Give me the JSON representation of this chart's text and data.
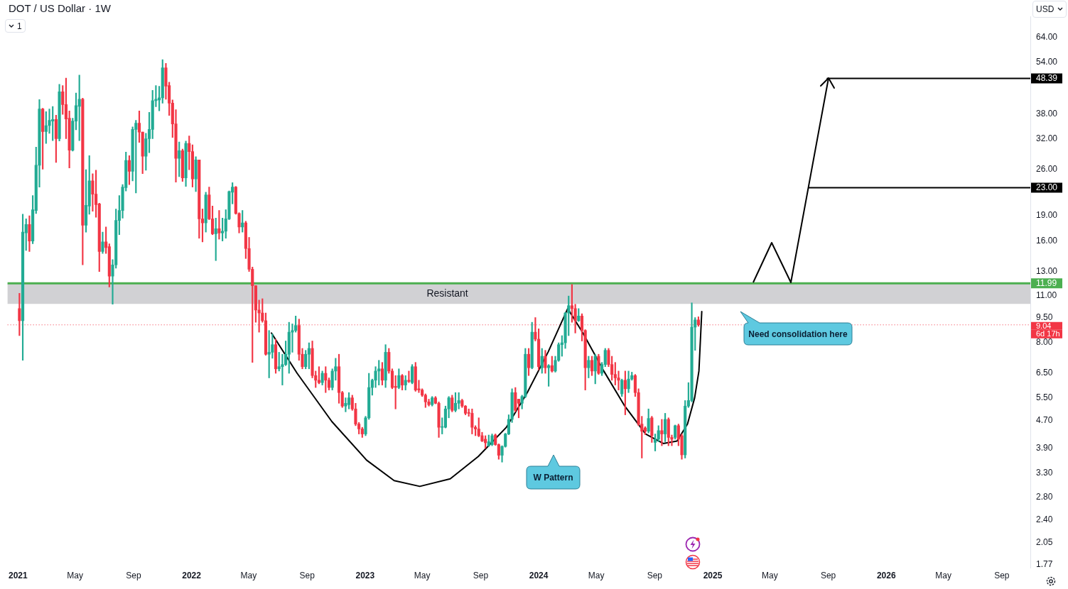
{
  "chart_data": {
    "type": "candlestick",
    "title": "DOT / US Dollar · 1W",
    "x": [
      "2021-01-04",
      "2021-01-11",
      "2021-01-18",
      "2021-01-25",
      "2021-02-01",
      "2021-02-08",
      "2021-02-15",
      "2021-02-22",
      "2021-03-01",
      "2021-03-08",
      "2021-03-15",
      "2021-03-22",
      "2021-03-29",
      "2021-04-05",
      "2021-04-12",
      "2021-04-19",
      "2021-04-26",
      "2021-05-03",
      "2021-05-10",
      "2021-05-17",
      "2021-05-24",
      "2021-05-31",
      "2021-06-07",
      "2021-06-14",
      "2021-06-21",
      "2021-06-28",
      "2021-07-05",
      "2021-07-12",
      "2021-07-19",
      "2021-07-26",
      "2021-08-02",
      "2021-08-09",
      "2021-08-16",
      "2021-08-23",
      "2021-08-30",
      "2021-09-06",
      "2021-09-13",
      "2021-09-20",
      "2021-09-27",
      "2021-10-04",
      "2021-10-11",
      "2021-10-18",
      "2021-10-25",
      "2021-11-01",
      "2021-11-08",
      "2021-11-15",
      "2021-11-22",
      "2021-11-29",
      "2021-12-06",
      "2021-12-13",
      "2021-12-20",
      "2021-12-27",
      "2022-01-03",
      "2022-01-10",
      "2022-01-17",
      "2022-01-24",
      "2022-01-31",
      "2022-02-07",
      "2022-02-14",
      "2022-02-21",
      "2022-02-28",
      "2022-03-07",
      "2022-03-14",
      "2022-03-21",
      "2022-03-28",
      "2022-04-04",
      "2022-04-11",
      "2022-04-18",
      "2022-04-25",
      "2022-05-02",
      "2022-05-09",
      "2022-05-16",
      "2022-05-23",
      "2022-05-30",
      "2022-06-06",
      "2022-06-13",
      "2022-06-20",
      "2022-06-27",
      "2022-07-04",
      "2022-07-11",
      "2022-07-18",
      "2022-07-25",
      "2022-08-01",
      "2022-08-08",
      "2022-08-15",
      "2022-08-22",
      "2022-08-29",
      "2022-09-05",
      "2022-09-12",
      "2022-09-19",
      "2022-09-26",
      "2022-10-03",
      "2022-10-10",
      "2022-10-17",
      "2022-10-24",
      "2022-10-31",
      "2022-11-07",
      "2022-11-14",
      "2022-11-21",
      "2022-11-28",
      "2022-12-05",
      "2022-12-12",
      "2022-12-19",
      "2022-12-26",
      "2023-01-02",
      "2023-01-09",
      "2023-01-16",
      "2023-01-23",
      "2023-01-30",
      "2023-02-06",
      "2023-02-13",
      "2023-02-20",
      "2023-02-27",
      "2023-03-06",
      "2023-03-13",
      "2023-03-20",
      "2023-03-27",
      "2023-04-03",
      "2023-04-10",
      "2023-04-17",
      "2023-04-24",
      "2023-05-01",
      "2023-05-08",
      "2023-05-15",
      "2023-05-22",
      "2023-05-29",
      "2023-06-05",
      "2023-06-12",
      "2023-06-19",
      "2023-06-26",
      "2023-07-03",
      "2023-07-10",
      "2023-07-17",
      "2023-07-24",
      "2023-07-31",
      "2023-08-07",
      "2023-08-14",
      "2023-08-21",
      "2023-08-28",
      "2023-09-04",
      "2023-09-11",
      "2023-09-18",
      "2023-09-25",
      "2023-10-02",
      "2023-10-09",
      "2023-10-16",
      "2023-10-23",
      "2023-10-30",
      "2023-11-06",
      "2023-11-13",
      "2023-11-20",
      "2023-11-27",
      "2023-12-04",
      "2023-12-11",
      "2023-12-18",
      "2023-12-25",
      "2024-01-01",
      "2024-01-08",
      "2024-01-15",
      "2024-01-22",
      "2024-01-29",
      "2024-02-05",
      "2024-02-12",
      "2024-02-19",
      "2024-02-26",
      "2024-03-04",
      "2024-03-11",
      "2024-03-18",
      "2024-03-25",
      "2024-04-01",
      "2024-04-08",
      "2024-04-15",
      "2024-04-22",
      "2024-04-29",
      "2024-05-06",
      "2024-05-13",
      "2024-05-20",
      "2024-05-27",
      "2024-06-03",
      "2024-06-10",
      "2024-06-17",
      "2024-06-24",
      "2024-07-01",
      "2024-07-08",
      "2024-07-15",
      "2024-07-22",
      "2024-07-29",
      "2024-08-05",
      "2024-08-12",
      "2024-08-19",
      "2024-08-26",
      "2024-09-02",
      "2024-09-09",
      "2024-09-16",
      "2024-09-23",
      "2024-09-30",
      "2024-10-07",
      "2024-10-14",
      "2024-10-21",
      "2024-10-28",
      "2024-11-04",
      "2024-11-11",
      "2024-11-18",
      "2024-11-25",
      "2024-12-02"
    ],
    "ohlc": [
      [
        10.1,
        11.2,
        8.4,
        9.3
      ],
      [
        9.3,
        19.2,
        7.1,
        17.0
      ],
      [
        16.9,
        18.6,
        15.0,
        17.9
      ],
      [
        17.9,
        19.0,
        14.9,
        16.0
      ],
      [
        16.0,
        21.8,
        15.7,
        19.8
      ],
      [
        19.7,
        30.3,
        19.3,
        26.8
      ],
      [
        26.8,
        41.9,
        23.1,
        39.3
      ],
      [
        39.3,
        39.5,
        26.1,
        33.7
      ],
      [
        33.7,
        38.6,
        31.1,
        35.1
      ],
      [
        35.1,
        39.3,
        33.3,
        36.4
      ],
      [
        36.2,
        40.0,
        31.7,
        36.6
      ],
      [
        36.6,
        37.7,
        27.3,
        32.1
      ],
      [
        32.1,
        46.5,
        31.6,
        44.2
      ],
      [
        44.2,
        46.1,
        37.9,
        40.5
      ],
      [
        40.5,
        48.5,
        32.1,
        36.7
      ],
      [
        36.9,
        38.8,
        26.3,
        29.7
      ],
      [
        29.7,
        36.9,
        29.5,
        36.2
      ],
      [
        36.2,
        43.8,
        34.1,
        40.2
      ],
      [
        40.0,
        49.5,
        31.7,
        42.0
      ],
      [
        42.0,
        42.3,
        13.6,
        17.8
      ],
      [
        17.8,
        26.0,
        17.0,
        20.4
      ],
      [
        20.3,
        28.6,
        19.2,
        24.1
      ],
      [
        24.1,
        25.3,
        19.6,
        22.0
      ],
      [
        22.0,
        25.9,
        18.8,
        20.5
      ],
      [
        20.6,
        20.7,
        13.0,
        14.9
      ],
      [
        14.9,
        17.0,
        14.7,
        15.9
      ],
      [
        15.9,
        17.6,
        14.7,
        15.3
      ],
      [
        15.4,
        15.7,
        11.7,
        12.6
      ],
      [
        12.6,
        14.1,
        10.4,
        13.6
      ],
      [
        13.6,
        19.9,
        13.3,
        18.4
      ],
      [
        18.4,
        21.8,
        16.7,
        19.7
      ],
      [
        19.7,
        23.5,
        18.7,
        23.1
      ],
      [
        23.0,
        29.3,
        22.5,
        27.7
      ],
      [
        27.7,
        28.6,
        23.5,
        25.7
      ],
      [
        25.7,
        34.8,
        24.1,
        34.2
      ],
      [
        34.2,
        36.4,
        22.2,
        35.7
      ],
      [
        35.7,
        38.8,
        31.3,
        33.6
      ],
      [
        33.6,
        33.6,
        25.3,
        28.5
      ],
      [
        28.5,
        33.3,
        25.9,
        32.1
      ],
      [
        32.1,
        38.4,
        29.2,
        34.2
      ],
      [
        34.2,
        44.6,
        32.1,
        41.6
      ],
      [
        41.6,
        46.1,
        39.9,
        42.0
      ],
      [
        41.8,
        45.9,
        38.8,
        42.4
      ],
      [
        42.4,
        55.0,
        40.9,
        52.0
      ],
      [
        52.0,
        53.6,
        42.0,
        45.9
      ],
      [
        46.1,
        47.2,
        37.6,
        40.9
      ],
      [
        40.9,
        41.8,
        32.4,
        35.5
      ],
      [
        35.5,
        39.1,
        23.9,
        28.1
      ],
      [
        28.1,
        31.4,
        24.8,
        29.6
      ],
      [
        29.6,
        29.9,
        24.0,
        24.6
      ],
      [
        24.6,
        31.6,
        23.2,
        31.1
      ],
      [
        31.1,
        32.7,
        26.0,
        29.4
      ],
      [
        29.4,
        30.8,
        23.1,
        24.4
      ],
      [
        24.4,
        28.4,
        22.4,
        27.8
      ],
      [
        27.8,
        27.8,
        16.3,
        18.6
      ],
      [
        18.6,
        19.9,
        15.9,
        18.1
      ],
      [
        18.1,
        22.3,
        17.0,
        21.9
      ],
      [
        21.9,
        23.1,
        18.5,
        18.6
      ],
      [
        18.6,
        20.3,
        16.7,
        16.8
      ],
      [
        16.8,
        18.7,
        14.0,
        17.4
      ],
      [
        17.4,
        19.7,
        16.2,
        16.9
      ],
      [
        16.9,
        18.7,
        16.0,
        17.1
      ],
      [
        17.1,
        19.8,
        16.3,
        18.6
      ],
      [
        18.6,
        22.5,
        18.5,
        22.4
      ],
      [
        22.3,
        23.8,
        20.6,
        23.1
      ],
      [
        23.1,
        23.2,
        19.2,
        19.3
      ],
      [
        19.3,
        19.4,
        16.9,
        17.6
      ],
      [
        17.6,
        19.7,
        17.0,
        18.1
      ],
      [
        18.1,
        18.3,
        14.2,
        15.2
      ],
      [
        15.2,
        16.4,
        13.0,
        13.2
      ],
      [
        13.2,
        13.4,
        7.0,
        11.8
      ],
      [
        11.8,
        11.8,
        9.2,
        10.0
      ],
      [
        10.0,
        10.7,
        8.6,
        9.8
      ],
      [
        9.8,
        10.8,
        9.2,
        9.3
      ],
      [
        9.3,
        9.8,
        7.35,
        7.4
      ],
      [
        7.4,
        8.7,
        6.3,
        7.5
      ],
      [
        7.5,
        8.5,
        7.2,
        7.9
      ],
      [
        7.9,
        8.2,
        6.5,
        6.7
      ],
      [
        6.7,
        7.5,
        6.6,
        6.8
      ],
      [
        6.8,
        7.4,
        6.0,
        6.9
      ],
      [
        6.9,
        8.1,
        6.85,
        7.4
      ],
      [
        7.4,
        9.2,
        6.5,
        8.6
      ],
      [
        8.6,
        9.1,
        7.5,
        8.7
      ],
      [
        8.7,
        9.6,
        8.6,
        9.0
      ],
      [
        9.0,
        9.4,
        7.1,
        7.4
      ],
      [
        7.4,
        7.7,
        6.7,
        6.8
      ],
      [
        6.8,
        7.6,
        6.7,
        7.4
      ],
      [
        7.4,
        8.0,
        6.7,
        7.7
      ],
      [
        7.7,
        8.1,
        6.3,
        6.4
      ],
      [
        6.4,
        6.6,
        5.9,
        6.2
      ],
      [
        6.2,
        6.8,
        6.05,
        6.1
      ],
      [
        6.1,
        6.6,
        6.0,
        6.5
      ],
      [
        6.5,
        6.8,
        5.7,
        6.2
      ],
      [
        6.2,
        6.3,
        5.8,
        5.9
      ],
      [
        5.9,
        6.7,
        5.8,
        6.6
      ],
      [
        6.6,
        7.2,
        6.2,
        6.8
      ],
      [
        6.8,
        7.4,
        5.3,
        5.7
      ],
      [
        5.7,
        5.75,
        5.15,
        5.2
      ],
      [
        5.2,
        5.5,
        5.0,
        5.3
      ],
      [
        5.25,
        5.7,
        5.1,
        5.5
      ],
      [
        5.5,
        5.6,
        5.05,
        5.1
      ],
      [
        5.1,
        5.3,
        4.55,
        4.6
      ],
      [
        4.6,
        4.65,
        4.3,
        4.45
      ],
      [
        4.45,
        4.5,
        4.2,
        4.3
      ],
      [
        4.3,
        4.85,
        4.25,
        4.8
      ],
      [
        4.8,
        6.5,
        4.75,
        5.9
      ],
      [
        5.9,
        6.25,
        5.6,
        6.2
      ],
      [
        6.2,
        6.8,
        5.9,
        6.6
      ],
      [
        6.6,
        7.1,
        6.0,
        6.7
      ],
      [
        6.7,
        7.0,
        6.0,
        6.2
      ],
      [
        6.2,
        7.9,
        5.9,
        7.5
      ],
      [
        7.5,
        7.7,
        6.5,
        6.6
      ],
      [
        6.6,
        6.7,
        5.85,
        5.9
      ],
      [
        5.95,
        6.4,
        5.1,
        5.9
      ],
      [
        5.9,
        6.7,
        5.85,
        6.4
      ],
      [
        6.4,
        6.45,
        5.8,
        6.0
      ],
      [
        6.0,
        6.4,
        5.8,
        6.2
      ],
      [
        6.2,
        6.6,
        6.1,
        6.15
      ],
      [
        6.1,
        6.9,
        6.05,
        6.8
      ],
      [
        6.8,
        7.0,
        5.75,
        5.8
      ],
      [
        5.85,
        6.2,
        5.7,
        5.8
      ],
      [
        5.8,
        5.85,
        5.55,
        5.6
      ],
      [
        5.6,
        5.65,
        5.15,
        5.35
      ],
      [
        5.35,
        5.45,
        5.2,
        5.25
      ],
      [
        5.25,
        5.55,
        5.2,
        5.5
      ],
      [
        5.5,
        5.55,
        5.28,
        5.3
      ],
      [
        5.3,
        5.35,
        4.2,
        4.5
      ],
      [
        4.5,
        4.8,
        4.3,
        4.52
      ],
      [
        4.5,
        5.2,
        4.48,
        5.1
      ],
      [
        5.1,
        5.55,
        4.8,
        5.5
      ],
      [
        5.5,
        5.6,
        5.0,
        5.05
      ],
      [
        5.05,
        5.7,
        5.0,
        5.3
      ],
      [
        5.3,
        5.7,
        5.1,
        5.4
      ],
      [
        5.4,
        5.45,
        5.15,
        5.2
      ],
      [
        5.2,
        5.22,
        4.9,
        4.95
      ],
      [
        4.97,
        5.1,
        4.85,
        4.95
      ],
      [
        4.95,
        5.1,
        4.3,
        4.5
      ],
      [
        4.5,
        4.55,
        4.25,
        4.45
      ],
      [
        4.45,
        4.8,
        4.22,
        4.25
      ],
      [
        4.25,
        4.35,
        4.08,
        4.1
      ],
      [
        4.15,
        4.25,
        3.9,
        4.05
      ],
      [
        3.97,
        4.27,
        3.95,
        4.08
      ],
      [
        4.0,
        4.3,
        3.97,
        4.25
      ],
      [
        4.27,
        4.3,
        3.98,
        4.0
      ],
      [
        4.0,
        4.02,
        3.62,
        3.72
      ],
      [
        3.72,
        3.97,
        3.55,
        3.95
      ],
      [
        3.95,
        4.32,
        3.93,
        4.3
      ],
      [
        4.3,
        4.9,
        4.28,
        4.75
      ],
      [
        4.75,
        5.85,
        4.65,
        5.7
      ],
      [
        5.7,
        5.9,
        5.0,
        5.05
      ],
      [
        5.45,
        5.45,
        4.8,
        5.3
      ],
      [
        5.3,
        5.6,
        5.1,
        5.55
      ],
      [
        5.55,
        7.7,
        5.5,
        7.4
      ],
      [
        7.4,
        7.7,
        6.4,
        6.75
      ],
      [
        6.75,
        9.2,
        6.7,
        8.6
      ],
      [
        8.6,
        9.5,
        8.1,
        8.2
      ],
      [
        8.2,
        8.8,
        6.65,
        6.8
      ],
      [
        6.75,
        7.7,
        6.5,
        7.3
      ],
      [
        7.3,
        7.6,
        6.5,
        6.75
      ],
      [
        6.75,
        6.9,
        5.95,
        6.85
      ],
      [
        6.85,
        7.3,
        6.55,
        6.6
      ],
      [
        6.6,
        7.3,
        6.55,
        7.1
      ],
      [
        7.1,
        8.0,
        7.05,
        7.9
      ],
      [
        7.9,
        8.4,
        7.3,
        8.0
      ],
      [
        8.0,
        9.85,
        7.7,
        9.8
      ],
      [
        9.8,
        11.0,
        8.4,
        10.3
      ],
      [
        10.3,
        11.9,
        9.2,
        10.1
      ],
      [
        10.1,
        10.4,
        8.55,
        9.3
      ],
      [
        9.3,
        10.1,
        9.25,
        9.6
      ],
      [
        9.6,
        9.75,
        8.1,
        8.7
      ],
      [
        8.7,
        8.75,
        5.8,
        6.75
      ],
      [
        6.75,
        7.3,
        6.3,
        7.1
      ],
      [
        7.1,
        7.3,
        6.4,
        6.6
      ],
      [
        6.6,
        7.4,
        6.05,
        7.3
      ],
      [
        7.3,
        7.4,
        6.45,
        6.5
      ],
      [
        6.5,
        7.0,
        6.4,
        6.9
      ],
      [
        6.9,
        7.7,
        6.8,
        7.6
      ],
      [
        7.6,
        7.7,
        6.8,
        6.9
      ],
      [
        6.9,
        7.3,
        6.2,
        6.45
      ],
      [
        6.45,
        7.0,
        6.0,
        6.3
      ],
      [
        6.3,
        6.6,
        5.8,
        6.2
      ],
      [
        5.65,
        6.25,
        5.55,
        6.2
      ],
      [
        6.2,
        6.6,
        4.9,
        5.85
      ],
      [
        5.85,
        6.6,
        5.7,
        6.25
      ],
      [
        6.25,
        6.55,
        6.2,
        6.4
      ],
      [
        6.4,
        6.45,
        5.55,
        5.7
      ],
      [
        5.7,
        5.85,
        4.55,
        4.6
      ],
      [
        4.6,
        4.85,
        3.65,
        4.38
      ],
      [
        4.48,
        4.52,
        4.28,
        4.38
      ],
      [
        4.38,
        5.1,
        4.33,
        4.78
      ],
      [
        4.8,
        4.85,
        4.06,
        4.25
      ],
      [
        4.06,
        4.3,
        3.83,
        4.15
      ],
      [
        4.15,
        4.55,
        4.08,
        4.4
      ],
      [
        4.4,
        4.75,
        3.97,
        4.3
      ],
      [
        4.3,
        4.95,
        4.08,
        4.75
      ],
      [
        4.75,
        4.8,
        3.97,
        4.2
      ],
      [
        4.2,
        4.27,
        3.97,
        4.15
      ],
      [
        4.2,
        4.57,
        4.15,
        4.55
      ],
      [
        4.55,
        4.6,
        3.97,
        4.15
      ],
      [
        4.25,
        4.3,
        3.62,
        3.73
      ],
      [
        3.73,
        5.4,
        3.65,
        5.2
      ],
      [
        5.2,
        6.1,
        5.15,
        5.4
      ],
      [
        5.4,
        10.5,
        5.35,
        8.9
      ],
      [
        8.9,
        9.5,
        7.6,
        9.35
      ],
      [
        9.35,
        9.55,
        8.95,
        9.04
      ]
    ],
    "colors": [
      "#f23645",
      "#22ab94",
      "#22ab94",
      "#f23645",
      "#22ab94",
      "#22ab94",
      "#22ab94",
      "#f23645",
      "#22ab94",
      "#22ab94",
      "#22ab94",
      "#f23645",
      "#22ab94",
      "#f23645",
      "#f23645",
      "#f23645",
      "#22ab94",
      "#22ab94",
      "#22ab94",
      "#f23645",
      "#22ab94",
      "#22ab94",
      "#f23645",
      "#f23645",
      "#f23645",
      "#22ab94",
      "#f23645",
      "#f23645",
      "#22ab94",
      "#22ab94",
      "#22ab94",
      "#22ab94",
      "#22ab94",
      "#f23645",
      "#22ab94",
      "#22ab94",
      "#f23645",
      "#f23645",
      "#22ab94",
      "#22ab94",
      "#22ab94",
      "#22ab94",
      "#22ab94",
      "#22ab94",
      "#f23645",
      "#f23645",
      "#f23645",
      "#f23645",
      "#22ab94",
      "#f23645",
      "#22ab94",
      "#f23645",
      "#f23645",
      "#22ab94",
      "#f23645",
      "#f23645",
      "#22ab94",
      "#f23645",
      "#f23645",
      "#22ab94",
      "#f23645",
      "#22ab94",
      "#22ab94",
      "#22ab94",
      "#22ab94",
      "#f23645",
      "#f23645",
      "#22ab94",
      "#f23645",
      "#f23645",
      "#f23645",
      "#f23645",
      "#f23645",
      "#f23645",
      "#f23645",
      "#22ab94",
      "#22ab94",
      "#f23645",
      "#22ab94",
      "#22ab94",
      "#22ab94",
      "#22ab94",
      "#22ab94",
      "#22ab94",
      "#f23645",
      "#f23645",
      "#22ab94",
      "#22ab94",
      "#f23645",
      "#f23645",
      "#f23645",
      "#22ab94",
      "#f23645",
      "#f23645",
      "#22ab94",
      "#22ab94",
      "#f23645",
      "#f23645",
      "#22ab94",
      "#22ab94",
      "#f23645",
      "#f23645",
      "#f23645",
      "#f23645",
      "#22ab94",
      "#22ab94",
      "#22ab94",
      "#22ab94",
      "#22ab94",
      "#f23645",
      "#22ab94",
      "#f23645",
      "#f23645",
      "#f23645",
      "#22ab94",
      "#f23645",
      "#22ab94",
      "#f23645",
      "#22ab94",
      "#f23645",
      "#f23645",
      "#f23645",
      "#f23645",
      "#f23645",
      "#22ab94",
      "#f23645",
      "#f23645",
      "#22ab94",
      "#22ab94",
      "#22ab94",
      "#f23645",
      "#22ab94",
      "#22ab94",
      "#f23645",
      "#f23645",
      "#f23645",
      "#f23645",
      "#f23645",
      "#f23645",
      "#f23645",
      "#f23645",
      "#22ab94",
      "#22ab94",
      "#f23645",
      "#f23645",
      "#22ab94",
      "#22ab94",
      "#22ab94",
      "#22ab94",
      "#f23645",
      "#f23645",
      "#22ab94",
      "#22ab94",
      "#f23645",
      "#22ab94",
      "#f23645",
      "#f23645",
      "#22ab94",
      "#f23645",
      "#22ab94",
      "#f23645",
      "#22ab94",
      "#22ab94",
      "#22ab94",
      "#22ab94",
      "#22ab94",
      "#f23645",
      "#f23645",
      "#22ab94",
      "#f23645",
      "#f23645",
      "#22ab94",
      "#f23645",
      "#22ab94",
      "#f23645",
      "#22ab94",
      "#22ab94",
      "#f23645",
      "#f23645",
      "#f23645",
      "#f23645",
      "#22ab94",
      "#f23645",
      "#22ab94",
      "#22ab94",
      "#f23645",
      "#f23645",
      "#f23645",
      "#f23645",
      "#22ab94",
      "#f23645",
      "#22ab94",
      "#22ab94",
      "#f23645",
      "#22ab94",
      "#f23645",
      "#f23645",
      "#22ab94",
      "#f23645",
      "#f23645",
      "#22ab94",
      "#22ab94",
      "#22ab94",
      "#22ab94",
      "#f23645"
    ],
    "series": [
      {
        "type": "line",
        "color": "#000000",
        "x": [
          "2022-06-18",
          "2022-08-11",
          "2022-10-23",
          "2023-01-04",
          "2023-03-03",
          "2023-04-26",
          "2023-06-29",
          "2023-08-27",
          "2023-10-25",
          "2023-12-08",
          "2024-01-21",
          "2024-03-02",
          "2024-04-03",
          "2024-05-17",
          "2024-06-30",
          "2024-08-13",
          "2024-09-19",
          "2024-10-18",
          "2024-11-09",
          "2024-11-24",
          "2024-12-03",
          "2024-12-09"
        ],
        "values": [
          8.55,
          6.5,
          4.68,
          3.6,
          3.13,
          3.01,
          3.17,
          3.69,
          4.5,
          5.7,
          7.52,
          10.1,
          8.55,
          6.6,
          5.2,
          4.3,
          4.03,
          4.1,
          4.6,
          5.5,
          6.6,
          9.9
        ]
      },
      {
        "type": "line",
        "color": "#000000",
        "x": [
          "2025-08-30",
          "2026-10-31"
        ],
        "values": [
          48.39,
          48.39
        ],
        "value_labels": [
          null,
          "48.39"
        ]
      },
      {
        "type": "line",
        "color": "#000000",
        "x": [
          "2025-07-22",
          "2026-10-31"
        ],
        "values": [
          23,
          23
        ],
        "value_labels": [
          null,
          "23.00"
        ]
      }
    ],
    "xlim": [
      "2020-12-10",
      "2026-10-31"
    ],
    "xticks": [
      {
        "value": "2021-01-01",
        "label": "2021"
      },
      {
        "value": "2021-05-01",
        "label": "May"
      },
      {
        "value": "2021-09-01",
        "label": "Sep"
      },
      {
        "value": "2022-01-01",
        "label": "2022"
      },
      {
        "value": "2022-05-01",
        "label": "May"
      },
      {
        "value": "2022-09-01",
        "label": "Sep"
      },
      {
        "value": "2023-01-01",
        "label": "2023"
      },
      {
        "value": "2023-05-01",
        "label": "May"
      },
      {
        "value": "2023-09-01",
        "label": "Sep"
      },
      {
        "value": "2024-01-01",
        "label": "2024"
      },
      {
        "value": "2024-05-01",
        "label": "May"
      },
      {
        "value": "2024-09-01",
        "label": "Sep"
      },
      {
        "value": "2025-01-01",
        "label": "2025"
      },
      {
        "value": "2025-05-01",
        "label": "May"
      },
      {
        "value": "2025-09-01",
        "label": "Sep"
      },
      {
        "value": "2026-01-01",
        "label": "2026"
      },
      {
        "value": "2026-05-01",
        "label": "May"
      },
      {
        "value": "2026-09-01",
        "label": "Sep"
      }
    ],
    "log": true,
    "ylim": [
      1.73,
      73.8
    ],
    "yticks": [
      {
        "value": 64,
        "label": "64.00"
      },
      {
        "value": 54,
        "label": "54.00"
      },
      {
        "value": 38,
        "label": "38.00"
      },
      {
        "value": 32,
        "label": "32.00"
      },
      {
        "value": 26,
        "label": "26.00"
      },
      {
        "value": 19,
        "label": "19.00"
      },
      {
        "value": 16,
        "label": "16.00"
      },
      {
        "value": 13,
        "label": "13.00"
      },
      {
        "value": 11,
        "label": "11.00"
      },
      {
        "value": 9.5,
        "label": "9.50"
      },
      {
        "value": 8,
        "label": "8.00"
      },
      {
        "value": 6.5,
        "label": "6.50"
      },
      {
        "value": 5.5,
        "label": "5.50"
      },
      {
        "value": 4.7,
        "label": "4.70"
      },
      {
        "value": 3.9,
        "label": "3.90"
      },
      {
        "value": 3.3,
        "label": "3.30"
      },
      {
        "value": 2.8,
        "label": "2.80"
      },
      {
        "value": 2.4,
        "label": "2.40"
      },
      {
        "value": 2.05,
        "label": "2.05"
      },
      {
        "value": 1.77,
        "label": "1.77"
      }
    ],
    "ref_lines": [
      {
        "axis": "y",
        "value": 11.99,
        "label": "11.99",
        "color": "#4caf50"
      },
      {
        "axis": "y",
        "value": 9.04,
        "label": "9.04",
        "color": "#f23645",
        "line_style": "dotted"
      }
    ],
    "bands": [
      {
        "axis": "y",
        "from": 10.42,
        "to": 11.99,
        "label": "Resistant",
        "color": "#d1d1d4"
      }
    ],
    "annotations": [
      "W Pattern",
      "Need consolidation here",
      "6d 17h",
      "USD",
      "1"
    ]
  }
}
